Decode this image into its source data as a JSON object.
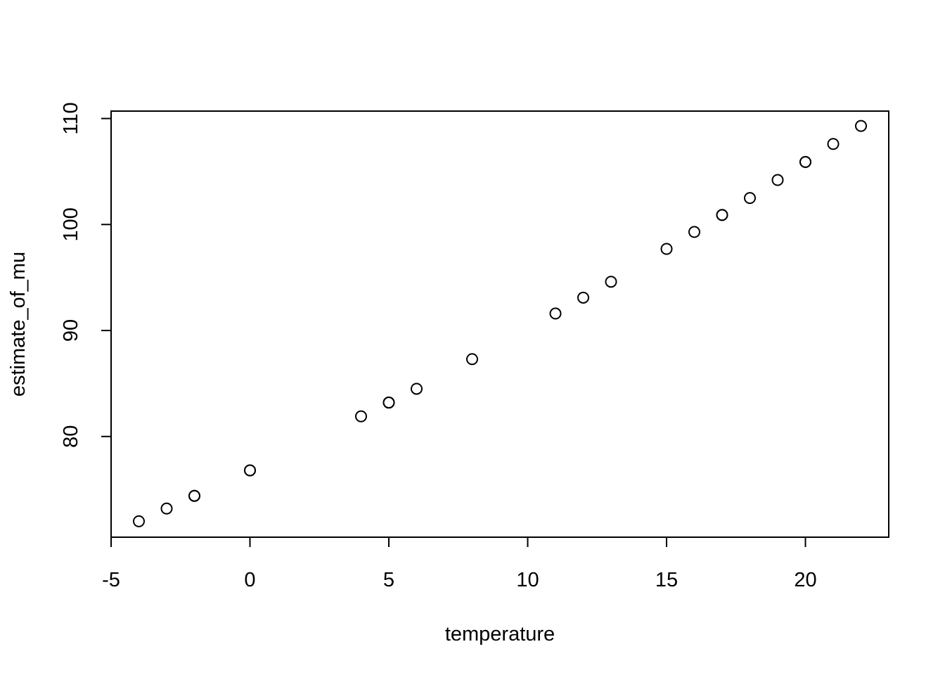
{
  "chart_data": {
    "type": "scatter",
    "title": "",
    "xlabel": "temperature",
    "ylabel": "estimate_of_mu",
    "xlim": [
      -5,
      23
    ],
    "ylim": [
      70.5,
      110.7
    ],
    "x_ticks": [
      -5,
      0,
      5,
      10,
      15,
      20
    ],
    "x_tick_labels": [
      "-5",
      "0",
      "5",
      "10",
      "15",
      "20"
    ],
    "y_ticks": [
      80,
      90,
      100,
      110
    ],
    "y_tick_labels": [
      "80",
      "90",
      "100",
      "110"
    ],
    "grid": false,
    "marker": "open-circle",
    "color": "#000000",
    "points": [
      {
        "x": -4,
        "y": 72.0
      },
      {
        "x": -3,
        "y": 73.2
      },
      {
        "x": -2,
        "y": 74.4
      },
      {
        "x": -2,
        "y": 74.4
      },
      {
        "x": 0,
        "y": 76.8
      },
      {
        "x": 0,
        "y": 76.8
      },
      {
        "x": 4,
        "y": 81.9
      },
      {
        "x": 5,
        "y": 83.2
      },
      {
        "x": 5,
        "y": 83.2
      },
      {
        "x": 6,
        "y": 84.5
      },
      {
        "x": 8,
        "y": 87.3
      },
      {
        "x": 11,
        "y": 91.6
      },
      {
        "x": 12,
        "y": 93.1
      },
      {
        "x": 13,
        "y": 94.6
      },
      {
        "x": 15,
        "y": 97.7
      },
      {
        "x": 16,
        "y": 99.3
      },
      {
        "x": 17,
        "y": 100.9
      },
      {
        "x": 17,
        "y": 100.9
      },
      {
        "x": 18,
        "y": 102.5
      },
      {
        "x": 19,
        "y": 104.2
      },
      {
        "x": 20,
        "y": 105.9
      },
      {
        "x": 20,
        "y": 105.9
      },
      {
        "x": 21,
        "y": 107.6
      },
      {
        "x": 22,
        "y": 109.3
      }
    ]
  }
}
